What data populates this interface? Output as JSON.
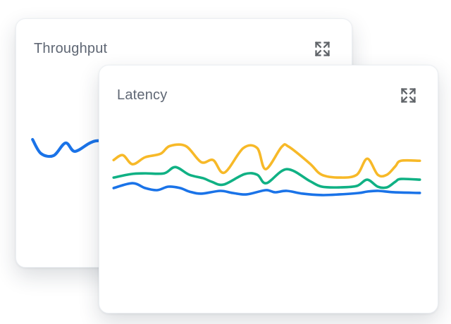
{
  "theme": {
    "page_background": "#ffffff",
    "card_background": "#ffffff",
    "card_border": "#eceff3",
    "title_color": "#5f6774",
    "icon_color": "#5f6368"
  },
  "cards": [
    {
      "title": "Throughput",
      "icon": "expand-arrows-icon"
    },
    {
      "title": "Latency",
      "icon": "expand-arrows-icon"
    }
  ],
  "chart_data": [
    {
      "type": "line",
      "title": "Throughput",
      "xlabel": "",
      "ylabel": "",
      "axes_visible": false,
      "grid": false,
      "legend": null,
      "note": "Sparkline with no ticks, labels or legend; right portion hidden behind the Latency card. Points are card-local pixels (card 478x354, y increases downward).",
      "series": [
        {
          "name": "throughput-blue",
          "color": "#1a73e8",
          "points": [
            [
              23,
              172
            ],
            [
              35,
              192
            ],
            [
              53,
              195
            ],
            [
              70,
              177
            ],
            [
              83,
              189
            ],
            [
              103,
              178
            ],
            [
              113,
              174
            ],
            [
              128,
              174
            ]
          ]
        }
      ]
    },
    {
      "type": "line",
      "title": "Latency",
      "xlabel": "",
      "ylabel": "",
      "axes_visible": false,
      "grid": false,
      "legend": null,
      "note": "Three sparklines with no ticks, labels or legend. Points are card-local pixels (card 482x353, y increases downward).",
      "series": [
        {
          "name": "latency-yellow",
          "color": "#f7b928",
          "points": [
            [
              20,
              135
            ],
            [
              33,
              128
            ],
            [
              47,
              141
            ],
            [
              65,
              131
            ],
            [
              87,
              126
            ],
            [
              100,
              115
            ],
            [
              123,
              115
            ],
            [
              145,
              138
            ],
            [
              162,
              135
            ],
            [
              178,
              153
            ],
            [
              205,
              118
            ],
            [
              225,
              118
            ],
            [
              237,
              148
            ],
            [
              260,
              116
            ],
            [
              270,
              116
            ],
            [
              300,
              140
            ],
            [
              317,
              156
            ],
            [
              343,
              160
            ],
            [
              367,
              156
            ],
            [
              382,
              133
            ],
            [
              397,
              156
            ],
            [
              410,
              156
            ],
            [
              422,
              144
            ],
            [
              430,
              136
            ],
            [
              457,
              136
            ]
          ]
        },
        {
          "name": "latency-green",
          "color": "#10b184",
          "points": [
            [
              20,
              160
            ],
            [
              45,
              155
            ],
            [
              65,
              154
            ],
            [
              92,
              154
            ],
            [
              108,
              145
            ],
            [
              128,
              156
            ],
            [
              148,
              161
            ],
            [
              160,
              166
            ],
            [
              177,
              170
            ],
            [
              207,
              155
            ],
            [
              225,
              156
            ],
            [
              238,
              168
            ],
            [
              267,
              148
            ],
            [
              300,
              165
            ],
            [
              317,
              173
            ],
            [
              343,
              174
            ],
            [
              367,
              172
            ],
            [
              382,
              163
            ],
            [
              397,
              173
            ],
            [
              410,
              174
            ],
            [
              422,
              166
            ],
            [
              430,
              162
            ],
            [
              457,
              163
            ]
          ]
        },
        {
          "name": "latency-blue",
          "color": "#1a73e8",
          "points": [
            [
              20,
              175
            ],
            [
              47,
              168
            ],
            [
              65,
              175
            ],
            [
              82,
              178
            ],
            [
              98,
              173
            ],
            [
              115,
              175
            ],
            [
              128,
              180
            ],
            [
              145,
              183
            ],
            [
              172,
              179
            ],
            [
              190,
              182
            ],
            [
              210,
              184
            ],
            [
              237,
              178
            ],
            [
              250,
              181
            ],
            [
              267,
              179
            ],
            [
              290,
              183
            ],
            [
              317,
              185
            ],
            [
              343,
              184
            ],
            [
              370,
              182
            ],
            [
              382,
              180
            ],
            [
              398,
              179
            ],
            [
              420,
              181
            ],
            [
              457,
              182
            ]
          ]
        }
      ]
    }
  ]
}
